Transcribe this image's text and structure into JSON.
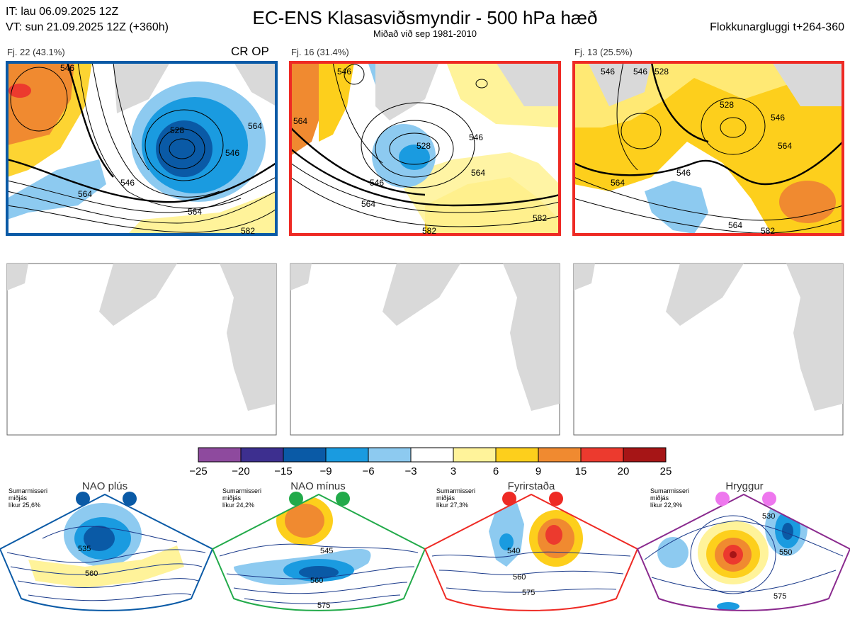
{
  "header": {
    "it_line": "IT: lau 06.09.2025 12Z",
    "vt_line": "VT: sun 21.09.2025 12Z  (+360h)",
    "title": "EC-ENS Klasasviðsmyndir - 500 hPa hæð",
    "subtitle": "Miðað við sep 1981-2010",
    "window": "Flokkunargluggi t+264-360"
  },
  "clusters": [
    {
      "label": "Fj. 22 (43.1%)",
      "badge": "CR OP",
      "frame_color": "#0a5aa6",
      "contour_labels": [
        "546",
        "528",
        "546",
        "564",
        "564",
        "564",
        "546",
        "582"
      ]
    },
    {
      "label": "Fj. 16 (31.4%)",
      "badge": "",
      "frame_color": "#ee2a24",
      "contour_labels": [
        "546",
        "564",
        "528",
        "546",
        "546",
        "564",
        "564",
        "582",
        "582"
      ]
    },
    {
      "label": "Fj. 13 (25.5%)",
      "badge": "",
      "frame_color": "#ee2a24",
      "contour_labels": [
        "546",
        "546",
        "528",
        "528",
        "546",
        "564",
        "564",
        "546",
        "564",
        "582"
      ]
    }
  ],
  "colorbar": {
    "ticks": [
      "−25",
      "−20",
      "−15",
      "−9",
      "−6",
      "−3",
      "3",
      "6",
      "9",
      "15",
      "20",
      "25"
    ],
    "colors": [
      "#8e4a9e",
      "#3d2f8f",
      "#0a5aa6",
      "#1a9be0",
      "#8dcaf0",
      "#ffffff",
      "#fff39a",
      "#fdcf1c",
      "#f08a30",
      "#ec3a2e",
      "#a61516"
    ]
  },
  "regimes": [
    {
      "name": "NAO plús",
      "season": "Sumarmisseri",
      "mean": "miðjás",
      "prob": "líkur 25,6%",
      "dot_color": "#0a5aa6",
      "frame_color": "#0a5aa6",
      "contour_labels": [
        "535",
        "560"
      ]
    },
    {
      "name": "NAO mínus",
      "season": "Sumarmisseri",
      "mean": "miðjás",
      "prob": "líkur 24,2%",
      "dot_color": "#22aa4a",
      "frame_color": "#22aa4a",
      "contour_labels": [
        "545",
        "560",
        "575"
      ]
    },
    {
      "name": "Fyrirstaða",
      "season": "Sumarmisseri",
      "mean": "miðjás",
      "prob": "líkur 27,3%",
      "dot_color": "#ee2a24",
      "frame_color": "#ee2a24",
      "contour_labels": [
        "540",
        "560",
        "575"
      ]
    },
    {
      "name": "Hryggur",
      "season": "Sumarmisseri",
      "mean": "miðjás",
      "prob": "líkur 22,9%",
      "dot_color": "#ee77ee",
      "frame_color": "#8a2a8e",
      "contour_labels": [
        "530",
        "550",
        "575"
      ]
    }
  ]
}
